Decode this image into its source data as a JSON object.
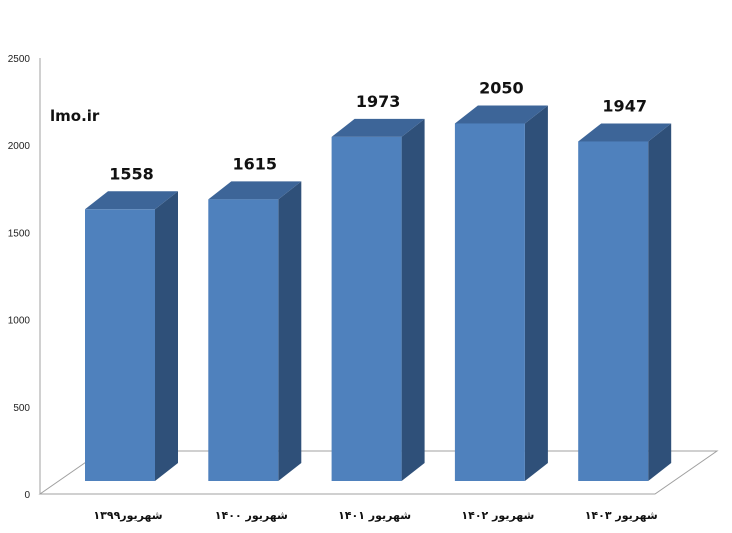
{
  "watermark": "lmo.ir",
  "chart_data": {
    "type": "bar",
    "style": "3d-column",
    "categories": [
      "شهریور۱۳۹۹",
      "شهریور ۱۴۰۰",
      "شهریور ۱۴۰۱",
      "شهریور ۱۴۰۲",
      "شهریور ۱۴۰۳"
    ],
    "values": [
      1558,
      1615,
      1973,
      2050,
      1947
    ],
    "data_labels": [
      "1558",
      "1615",
      "1973",
      "2050",
      "1947"
    ],
    "yticks": [
      "0",
      "500",
      "1000",
      "1500",
      "2000",
      "2500"
    ],
    "ylim": [
      0,
      2500
    ],
    "title": "",
    "xlabel": "",
    "ylabel": "",
    "grid": false,
    "legend": "none",
    "colors": {
      "front": "#4f81bd",
      "top": "#3d6598",
      "side": "#2f5079"
    }
  }
}
